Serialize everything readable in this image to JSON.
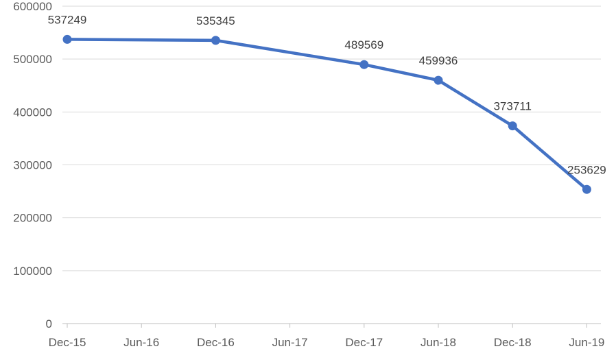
{
  "chart_data": {
    "type": "line",
    "x": [
      "Dec-15",
      "Dec-16",
      "Dec-17",
      "Jun-18",
      "Dec-18",
      "Jun-19"
    ],
    "series": [
      {
        "values": [
          537249,
          535345,
          489569,
          459936,
          373711,
          253629
        ],
        "data_labels": [
          "537249",
          "535345",
          "489569",
          "459936",
          "373711",
          "253629"
        ]
      }
    ],
    "x_tick_labels": [
      "Dec-15",
      "Jun-16",
      "Dec-16",
      "Jun-17",
      "Dec-17",
      "Jun-18",
      "Dec-18",
      "Jun-19"
    ],
    "y_tick_labels": [
      "0",
      "100000",
      "200000",
      "300000",
      "400000",
      "500000",
      "600000"
    ],
    "ylim": [
      0,
      600000
    ],
    "title": "",
    "xlabel": "",
    "ylabel": "",
    "grid": true,
    "legend": "none",
    "colors": {
      "line": "#4472C4",
      "grid": "#D9D9D9",
      "axis": "#BFBFBF"
    }
  }
}
